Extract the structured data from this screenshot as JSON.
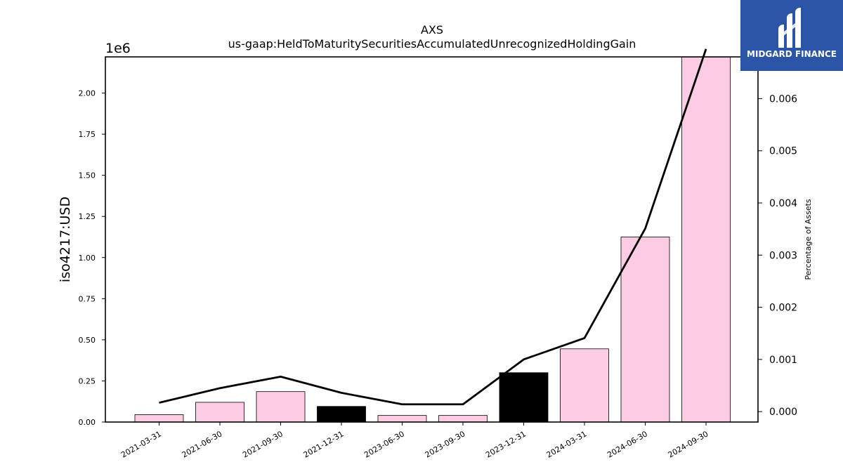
{
  "chart_data": {
    "type": "bar",
    "title": "AXS",
    "subtitle": "us-gaap:HeldToMaturitySecuritiesAccumulatedUnrecognizedHoldingGain",
    "ylabel": "iso4217:USD",
    "y_offset_label": "1e6",
    "y2label": "Percentage of Assets",
    "categories": [
      "2021-03-31",
      "2021-06-30",
      "2021-09-30",
      "2021-12-31",
      "2023-06-30",
      "2023-09-30",
      "2023-12-31",
      "2024-03-31",
      "2024-06-30",
      "2024-09-30"
    ],
    "series": [
      {
        "axis": "left",
        "kind": "bar",
        "values": [
          45000,
          120000,
          185000,
          95000,
          40000,
          40000,
          300000,
          445000,
          1125000,
          2220000
        ],
        "colors": [
          "#fccce4",
          "#fccce4",
          "#fccce4",
          "#000000",
          "#fccce4",
          "#fccce4",
          "#000000",
          "#fccce4",
          "#fccce4",
          "#fccce4"
        ]
      },
      {
        "axis": "right",
        "kind": "line",
        "color": "#000000",
        "values": [
          0.00017,
          0.00045,
          0.00067,
          0.00036,
          0.00014,
          0.00014,
          0.001,
          0.00141,
          0.00351,
          0.00695
        ]
      }
    ],
    "yticks": [
      "0.00",
      "0.25",
      "0.50",
      "0.75",
      "1.00",
      "1.25",
      "1.50",
      "1.75",
      "2.00"
    ],
    "ylim": [
      0,
      2220000
    ],
    "y2ticks": [
      "0.000",
      "0.001",
      "0.002",
      "0.003",
      "0.004",
      "0.005",
      "0.006"
    ],
    "y2lim": [
      -0.0002,
      0.0068
    ],
    "grid": false
  },
  "logo": {
    "text": "MIDGARD FINANCE",
    "background": "#2b56a8"
  }
}
